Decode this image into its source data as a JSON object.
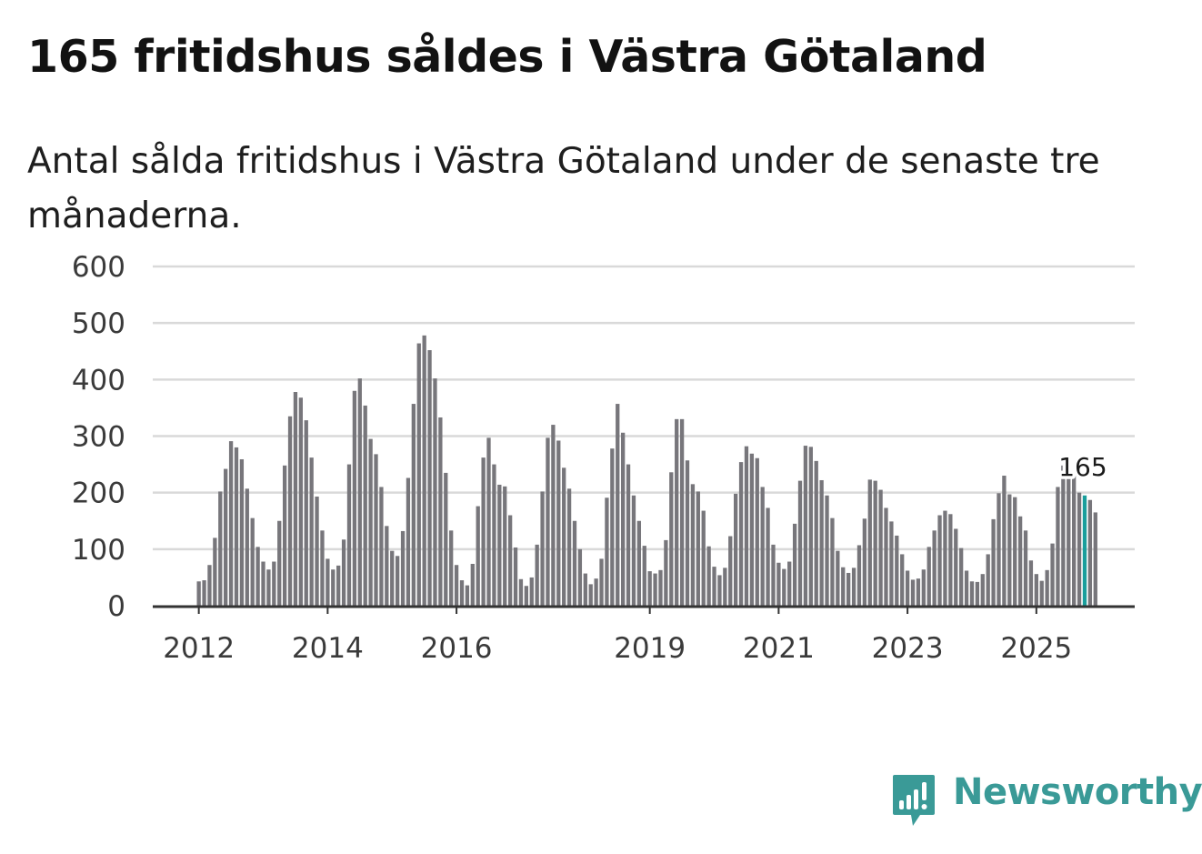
{
  "header": {
    "title": "165 fritidshus såldes i Västra Götaland",
    "subtitle": "Antal sålda fritidshus i Västra Götaland under de senaste tre månaderna."
  },
  "brand": {
    "name": "Newsworthy",
    "color": "#3a9a97",
    "icon": "newsworthy-logo-icon"
  },
  "colors": {
    "bar": "#77767b",
    "highlight": "#1a9e9c",
    "grid": "#d9d9d9",
    "axis": "#333333"
  },
  "chart_data": {
    "type": "bar",
    "title": "165 fritidshus såldes i Västra Götaland",
    "subtitle": "Antal sålda fritidshus i Västra Götaland under de senaste tre månaderna.",
    "xlabel": "",
    "ylabel": "",
    "ylim": [
      0,
      600
    ],
    "yticks": [
      0,
      100,
      200,
      300,
      400,
      500,
      600
    ],
    "grid": true,
    "start": "2012-01",
    "xticks": [
      {
        "label": "2012",
        "index": 0
      },
      {
        "label": "2014",
        "index": 24
      },
      {
        "label": "2016",
        "index": 48
      },
      {
        "label": "2019",
        "index": 84
      },
      {
        "label": "2021",
        "index": 108
      },
      {
        "label": "2023",
        "index": 132
      },
      {
        "label": "2025",
        "index": 156
      }
    ],
    "highlight_index": 165,
    "highlight_label": "165",
    "values": [
      43,
      45,
      72,
      120,
      202,
      242,
      291,
      280,
      259,
      207,
      155,
      104,
      78,
      64,
      78,
      150,
      248,
      335,
      378,
      368,
      328,
      262,
      193,
      133,
      83,
      64,
      71,
      117,
      250,
      380,
      402,
      354,
      295,
      268,
      210,
      141,
      97,
      88,
      132,
      226,
      357,
      464,
      478,
      452,
      402,
      333,
      235,
      133,
      72,
      45,
      36,
      74,
      176,
      262,
      297,
      250,
      214,
      211,
      160,
      103,
      47,
      35,
      50,
      108,
      202,
      297,
      320,
      292,
      244,
      207,
      150,
      100,
      57,
      38,
      48,
      83,
      191,
      278,
      357,
      306,
      250,
      195,
      150,
      106,
      61,
      57,
      63,
      116,
      236,
      330,
      330,
      257,
      215,
      202,
      168,
      105,
      69,
      54,
      67,
      123,
      198,
      254,
      282,
      269,
      261,
      210,
      173,
      108,
      76,
      65,
      78,
      145,
      221,
      283,
      281,
      256,
      222,
      195,
      155,
      97,
      68,
      58,
      67,
      107,
      154,
      223,
      221,
      205,
      173,
      149,
      124,
      91,
      62,
      46,
      48,
      64,
      104,
      133,
      160,
      168,
      162,
      136,
      102,
      62,
      43,
      42,
      56,
      91,
      153,
      199,
      230,
      197,
      192,
      158,
      133,
      80,
      56,
      44,
      63,
      110,
      210,
      248,
      253,
      236,
      200,
      195,
      187,
      165
    ]
  }
}
